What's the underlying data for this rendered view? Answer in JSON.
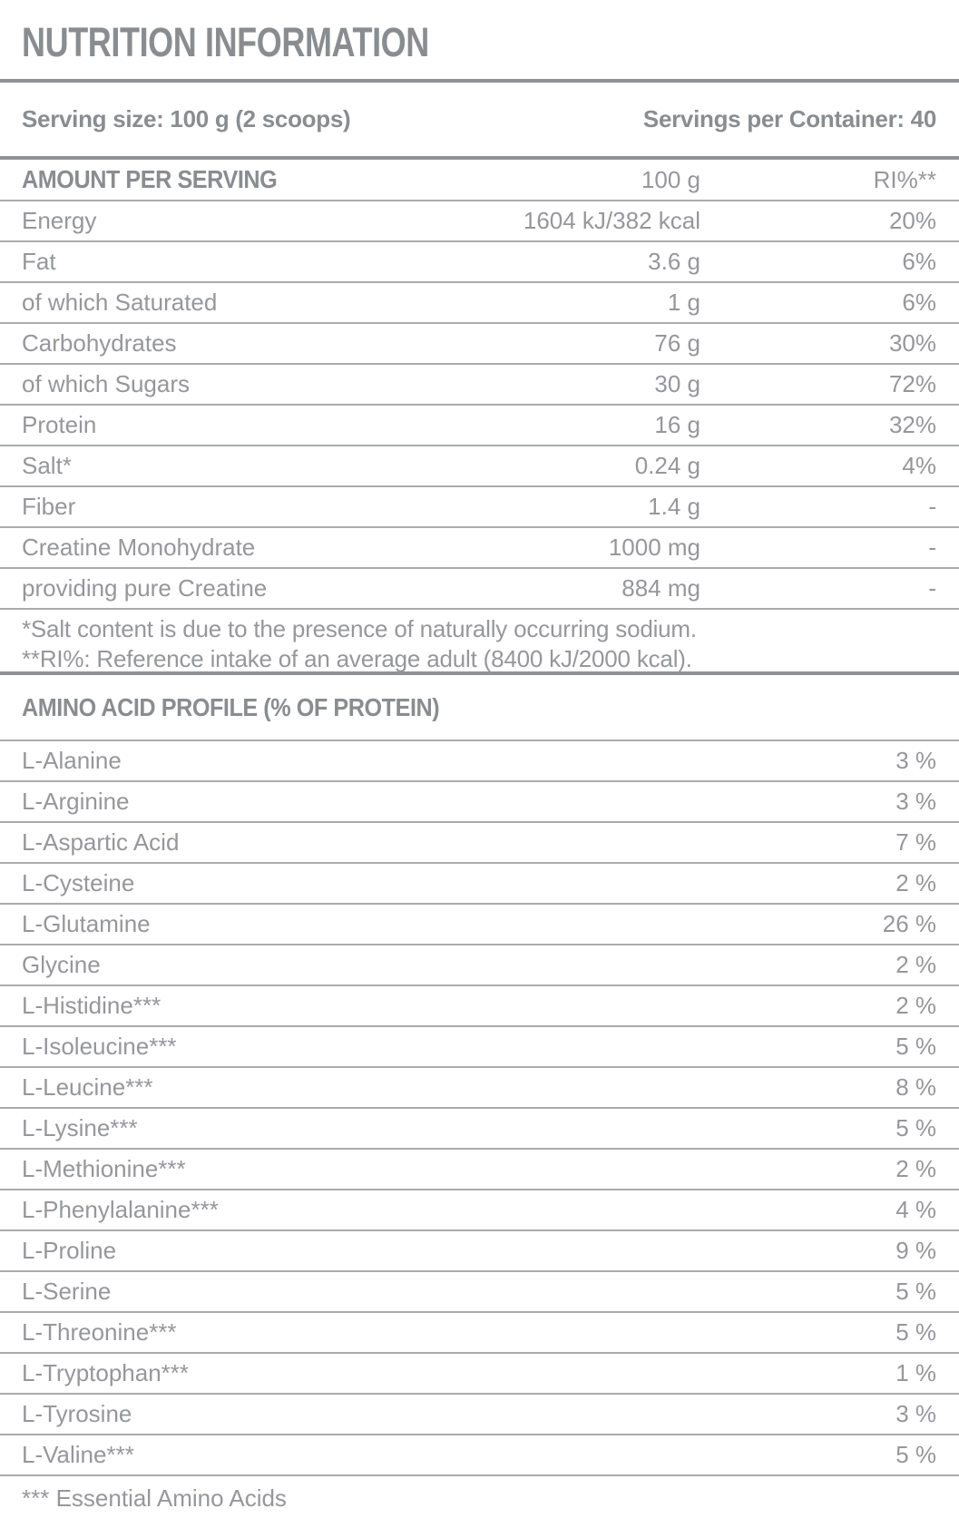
{
  "title": "NUTRITION INFORMATION",
  "serving": {
    "size_label": "Serving size: 100 g (2 scoops)",
    "per_container_label": "Servings per Container: 40"
  },
  "main_table": {
    "header": {
      "col_amount_per_serving": "AMOUNT PER SERVING",
      "col_amount": "100 g",
      "col_ri": "RI%**"
    },
    "rows": [
      {
        "name": "Energy",
        "amount": "1604 kJ/382 kcal",
        "ri": "20%"
      },
      {
        "name": "Fat",
        "amount": "3.6 g",
        "ri": "6%"
      },
      {
        "name": "of which Saturated",
        "amount": "1 g",
        "ri": "6%"
      },
      {
        "name": "Carbohydrates",
        "amount": "76 g",
        "ri": "30%"
      },
      {
        "name": "of which Sugars",
        "amount": "30 g",
        "ri": "72%"
      },
      {
        "name": "Protein",
        "amount": "16 g",
        "ri": "32%"
      },
      {
        "name": "Salt*",
        "amount": "0.24 g",
        "ri": "4%"
      },
      {
        "name": "Fiber",
        "amount": "1.4 g",
        "ri": "-"
      },
      {
        "name": "Creatine Monohydrate",
        "amount": "1000 mg",
        "ri": "-"
      },
      {
        "name": "providing pure Creatine",
        "amount": "884 mg",
        "ri": "-"
      }
    ],
    "footnotes": [
      "*Salt content is due to the presence of naturally occurring sodium.",
      "**RI%: Reference intake of an average adult (8400 kJ/2000 kcal)."
    ]
  },
  "amino_table": {
    "header": "AMINO ACID PROFILE (% OF PROTEIN)",
    "rows": [
      {
        "name": "L-Alanine",
        "value": "3 %"
      },
      {
        "name": "L-Arginine",
        "value": "3 %"
      },
      {
        "name": "L-Aspartic Acid",
        "value": "7 %"
      },
      {
        "name": "L-Cysteine",
        "value": "2 %"
      },
      {
        "name": "L-Glutamine",
        "value": "26 %"
      },
      {
        "name": "Glycine",
        "value": "2 %"
      },
      {
        "name": "L-Histidine***",
        "value": "2 %"
      },
      {
        "name": "L-Isoleucine***",
        "value": "5 %"
      },
      {
        "name": "L-Leucine***",
        "value": "8 %"
      },
      {
        "name": "L-Lysine***",
        "value": "5 %"
      },
      {
        "name": "L-Methionine***",
        "value": "2 %"
      },
      {
        "name": "L-Phenylalanine***",
        "value": "4 %"
      },
      {
        "name": "L-Proline",
        "value": "9 %"
      },
      {
        "name": "L-Serine",
        "value": "5 %"
      },
      {
        "name": "L-Threonine***",
        "value": "5 %"
      },
      {
        "name": "L-Tryptophan***",
        "value": "1 %"
      },
      {
        "name": "L-Tyrosine",
        "value": "3 %"
      },
      {
        "name": "L-Valine***",
        "value": "5 %"
      }
    ],
    "footnote": "*** Essential Amino Acids"
  },
  "colors": {
    "text": "#96979a",
    "text-bold": "#8a8d90",
    "line-thin": "#aaabad",
    "line-thick": "#8f9295",
    "bg": "#ffffff"
  }
}
